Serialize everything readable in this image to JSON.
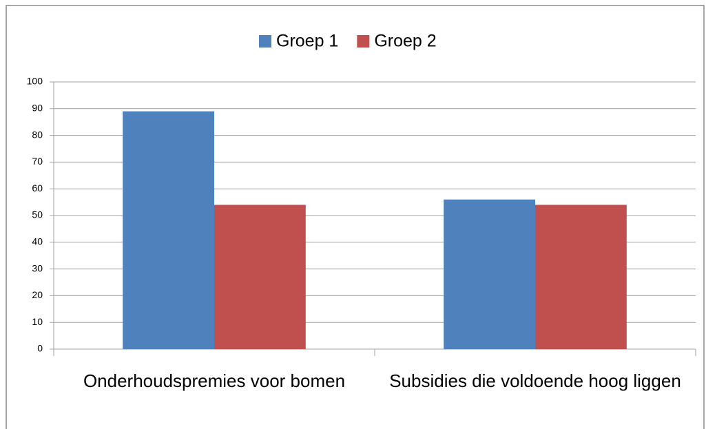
{
  "chart_data": {
    "type": "bar",
    "categories": [
      "Onderhoudspremies voor bomen",
      "Subsidies die voldoende hoog liggen"
    ],
    "series": [
      {
        "name": "Groep 1",
        "color": "#4f81bd",
        "values": [
          89,
          56
        ]
      },
      {
        "name": "Groep 2",
        "color": "#c0504d",
        "values": [
          54,
          54
        ]
      }
    ],
    "ylim": [
      0,
      100
    ],
    "yticks": [
      0,
      10,
      20,
      30,
      40,
      50,
      60,
      70,
      80,
      90,
      100
    ],
    "grid": true,
    "legend": "top"
  }
}
